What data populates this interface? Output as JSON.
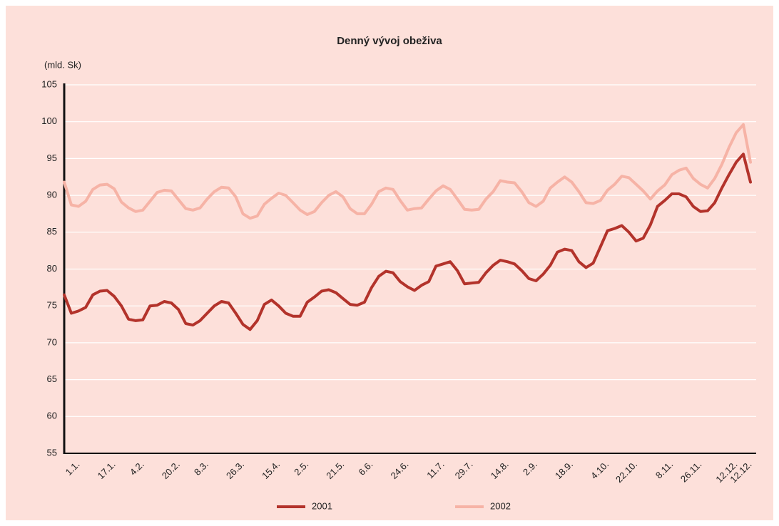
{
  "chart_data": {
    "type": "line",
    "title": "Denný vývoj obeživa",
    "ylabel": "(mld. Sk)",
    "categories": [
      null,
      null,
      "1.1.",
      null,
      null,
      null,
      null,
      "17.1.",
      null,
      null,
      null,
      "4.2.",
      null,
      null,
      null,
      null,
      "20.2.",
      null,
      null,
      null,
      "8.3.",
      null,
      null,
      null,
      null,
      "26.3.",
      null,
      null,
      null,
      null,
      "15.4.",
      null,
      null,
      null,
      "2.5.",
      null,
      null,
      null,
      null,
      "21.5.",
      null,
      null,
      null,
      "6.6.",
      null,
      null,
      null,
      null,
      "24.6.",
      null,
      null,
      null,
      null,
      "11.7.",
      null,
      null,
      null,
      "29.7.",
      null,
      null,
      null,
      null,
      "14.8.",
      null,
      null,
      null,
      "2.9.",
      null,
      null,
      null,
      null,
      "18.9.",
      null,
      null,
      null,
      null,
      "4.10.",
      null,
      null,
      null,
      "22.10.",
      null,
      null,
      null,
      null,
      "8.11.",
      null,
      null,
      null,
      "26.11.",
      null,
      null,
      null,
      null,
      "12.12.",
      null,
      "12.12."
    ],
    "series": [
      {
        "name": "2001",
        "color": "#b3332b",
        "values": [
          76.5,
          74,
          74.3,
          74.8,
          76.5,
          77,
          77.1,
          76.3,
          75,
          73.2,
          73,
          73.1,
          75,
          75.1,
          75.6,
          75.4,
          74.5,
          72.6,
          72.4,
          73,
          74,
          75,
          75.6,
          75.4,
          74,
          72.5,
          71.8,
          73,
          75.2,
          75.8,
          75,
          74,
          73.6,
          73.6,
          75.5,
          76.2,
          77,
          77.2,
          76.8,
          76,
          75.2,
          75.1,
          75.5,
          77.5,
          79,
          79.7,
          79.5,
          78.3,
          77.6,
          77.1,
          77.8,
          78.3,
          80.4,
          80.7,
          81,
          79.8,
          78,
          78.1,
          78.2,
          79.5,
          80.5,
          81.2,
          81,
          80.7,
          79.8,
          78.7,
          78.4,
          79.3,
          80.5,
          82.3,
          82.7,
          82.5,
          81,
          80.2,
          80.8,
          83,
          85.2,
          85.5,
          85.9,
          85,
          83.8,
          84.2,
          86,
          88.5,
          89.3,
          90.2,
          90.2,
          89.8,
          88.5,
          87.8,
          87.9,
          89,
          91,
          92.8,
          94.5,
          95.6,
          91.8
        ]
      },
      {
        "name": "2002",
        "color": "#f6b3a6",
        "values": [
          91.8,
          88.7,
          88.5,
          89.2,
          90.8,
          91.4,
          91.5,
          90.9,
          89.1,
          88.3,
          87.8,
          88,
          89.2,
          90.4,
          90.7,
          90.6,
          89.4,
          88.2,
          88,
          88.3,
          89.5,
          90.5,
          91.1,
          91,
          89.8,
          87.5,
          86.9,
          87.2,
          88.8,
          89.6,
          90.3,
          90,
          89,
          88,
          87.4,
          87.8,
          89,
          90,
          90.5,
          89.8,
          88.2,
          87.5,
          87.5,
          88.8,
          90.5,
          91,
          90.8,
          89.3,
          88,
          88.2,
          88.3,
          89.5,
          90.6,
          91.3,
          90.8,
          89.5,
          88.1,
          88,
          88.1,
          89.5,
          90.5,
          92,
          91.8,
          91.7,
          90.5,
          89,
          88.5,
          89.2,
          91,
          91.8,
          92.5,
          91.8,
          90.5,
          89,
          88.9,
          89.3,
          90.7,
          91.5,
          92.6,
          92.4,
          91.5,
          90.6,
          89.5,
          90.6,
          91.4,
          92.8,
          93.4,
          93.7,
          92.3,
          91.5,
          91,
          92.3,
          94.2,
          96.5,
          98.5,
          99.6,
          94.5
        ]
      }
    ],
    "ylim": [
      55,
      105
    ],
    "yticks": [
      55,
      60,
      65,
      70,
      75,
      80,
      85,
      90,
      95,
      100,
      105
    ],
    "grid": true,
    "legend": "bottom"
  }
}
